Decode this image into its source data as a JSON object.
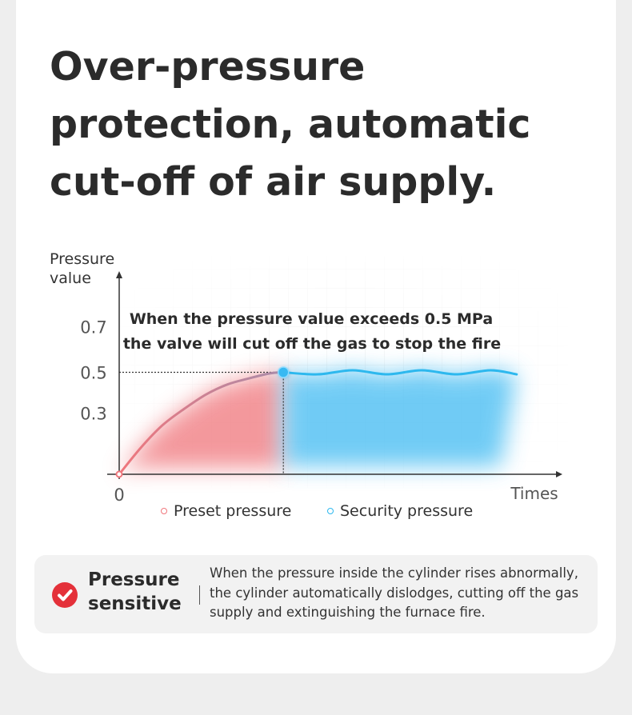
{
  "headline": "Over-pressure protection, automatic cut-off of air supply.",
  "chart_data": {
    "type": "line",
    "ylabel_line1": "Pressure",
    "ylabel_line2": "value",
    "xlabel": "Times",
    "origin_label": "0",
    "yticks": [
      "0.7",
      "0.5",
      "0.3"
    ],
    "ylim": [
      0,
      0.8
    ],
    "xlim": [
      0,
      10
    ],
    "annotation_line1": "When the pressure value exceeds 0.5 MPa",
    "annotation_line2": "the valve will cut off the gas to stop the fire",
    "threshold": 0.5,
    "threshold_x": 3.8,
    "series": [
      {
        "name": "Preset pressure",
        "color": "#f0767c",
        "x": [
          0,
          0.5,
          1,
          1.5,
          2,
          2.5,
          3,
          3.5,
          3.8
        ],
        "y": [
          0,
          0.13,
          0.24,
          0.32,
          0.39,
          0.44,
          0.47,
          0.495,
          0.5
        ]
      },
      {
        "name": "Security pressure",
        "color": "#2db8ee",
        "x": [
          3.8,
          4.6,
          5.4,
          6.2,
          7.0,
          7.8,
          8.6,
          9.2
        ],
        "y": [
          0.5,
          0.49,
          0.51,
          0.49,
          0.51,
          0.49,
          0.51,
          0.49
        ]
      }
    ],
    "legend": [
      "Preset pressure",
      "Security pressure"
    ],
    "grid": true
  },
  "feature": {
    "title": "Pressure sensitive",
    "text": "When the pressure inside the cylinder rises abnormally, the cylinder automatically dislodges, cutting off the gas supply and extinguishing the furnace fire."
  },
  "colors": {
    "accent": "#e4313a",
    "preset": "#f0767c",
    "security": "#2db8ee"
  }
}
